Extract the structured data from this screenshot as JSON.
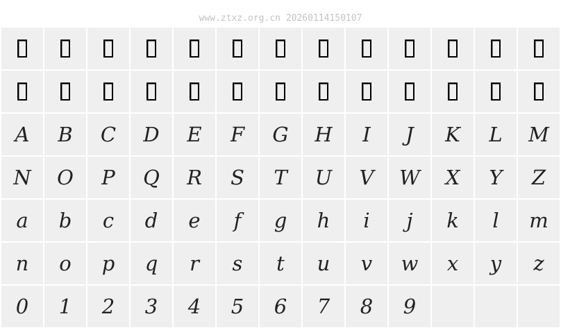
{
  "watermark": "www.ztxz.org.cn 20260114150107",
  "tofu_count": 26,
  "glyphs": [
    "A",
    "B",
    "C",
    "D",
    "E",
    "F",
    "G",
    "H",
    "I",
    "J",
    "K",
    "L",
    "M",
    "N",
    "O",
    "P",
    "Q",
    "R",
    "S",
    "T",
    "U",
    "V",
    "W",
    "X",
    "Y",
    "Z",
    "a",
    "b",
    "c",
    "d",
    "e",
    "f",
    "g",
    "h",
    "i",
    "j",
    "k",
    "l",
    "m",
    "n",
    "o",
    "p",
    "q",
    "r",
    "s",
    "t",
    "u",
    "v",
    "w",
    "x",
    "y",
    "z",
    "0",
    "1",
    "2",
    "3",
    "4",
    "5",
    "6",
    "7",
    "8",
    "9"
  ]
}
